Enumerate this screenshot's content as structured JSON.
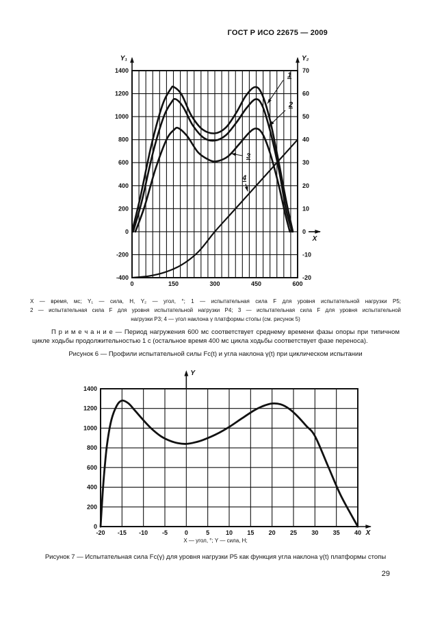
{
  "page": {
    "header": "ГОСТ Р ИСО 22675 — 2009",
    "page_number": "29"
  },
  "figure6": {
    "legend_line1": "X — время, мс; Y₁ — сила, Н, Y₂ — угол, °; 1 — испытательная сила F для уровня испытательной нагрузки Р5;",
    "legend_line2": "2 — испытательная сила F для уровня испытательной нагрузки Р4; 3 — испытательная сила F для уровня испытательной",
    "legend_line3": "нагрузки Р3; 4 — угол наклона γ платформы стопы (см. рисунок 5)",
    "note": "П р и м е ч а н и е — Период нагружения 600 мс соответствует среднему времени фазы опоры при типичном цикле ходьбы продолжительностью 1 с (остальное время 400 мс цикла ходьбы соответствует фазе переноса).",
    "caption": "Рисунок 6 — Профили испытательной силы Fc(t) и угла наклона γ(t) при циклическом испытании"
  },
  "figure7": {
    "axis_note": "X — угол, °; Y — сила, Н;",
    "caption": "Рисунок 7 — Испытательная сила Fc(γ) для уровня нагрузки Р5 как функция угла наклона γ(t) платформы стопы"
  },
  "chart_data": [
    {
      "type": "line",
      "title": "Профили испытательной силы Fc(t) и угла наклона γ(t) при циклическом испытании",
      "grid": true,
      "legend_position": "callout-numbers",
      "x_axis": {
        "label": "X",
        "unit": "время, мс",
        "min": 0,
        "max": 600,
        "grid_step": 25,
        "ticks": [
          0,
          150,
          300,
          450,
          600
        ]
      },
      "y_left": {
        "label": "Y₁",
        "unit": "сила, Н",
        "min": -400,
        "max": 1400,
        "grid_step": 200,
        "ticks": [
          1400,
          1200,
          1000,
          800,
          600,
          400,
          200,
          0,
          -200,
          -400
        ]
      },
      "y_right": {
        "label": "Y₂",
        "unit": "угол, °",
        "min": -20,
        "max": 70,
        "grid_step": 10,
        "ticks": [
          70,
          60,
          50,
          40,
          30,
          20,
          10,
          0,
          -10,
          -20
        ]
      },
      "series": [
        {
          "name": "1",
          "desc": "испытательная сила F для уровня испытательной нагрузки Р5",
          "axis": "left",
          "points": [
            [
              0,
              0
            ],
            [
              30,
              300
            ],
            [
              70,
              750
            ],
            [
              110,
              1100
            ],
            [
              140,
              1240
            ],
            [
              152,
              1257
            ],
            [
              180,
              1190
            ],
            [
              215,
              1010
            ],
            [
              255,
              890
            ],
            [
              300,
              855
            ],
            [
              340,
              905
            ],
            [
              378,
              1035
            ],
            [
              412,
              1180
            ],
            [
              445,
              1257
            ],
            [
              470,
              1200
            ],
            [
              500,
              970
            ],
            [
              532,
              600
            ],
            [
              560,
              250
            ],
            [
              583,
              0
            ]
          ]
        },
        {
          "name": "2",
          "desc": "испытательная сила F для уровня испытательной нагрузки Р4",
          "axis": "left",
          "points": [
            [
              4,
              0
            ],
            [
              35,
              260
            ],
            [
              75,
              680
            ],
            [
              115,
              1000
            ],
            [
              143,
              1125
            ],
            [
              158,
              1152
            ],
            [
              185,
              1085
            ],
            [
              220,
              925
            ],
            [
              260,
              815
            ],
            [
              300,
              792
            ],
            [
              340,
              838
            ],
            [
              380,
              955
            ],
            [
              415,
              1075
            ],
            [
              448,
              1152
            ],
            [
              472,
              1095
            ],
            [
              500,
              880
            ],
            [
              532,
              540
            ],
            [
              558,
              195
            ],
            [
              580,
              0
            ]
          ]
        },
        {
          "name": "3",
          "desc": "испытательная сила F для уровня испытательной нагрузки Р3",
          "axis": "left",
          "points": [
            [
              12,
              0
            ],
            [
              45,
              215
            ],
            [
              85,
              545
            ],
            [
              125,
              800
            ],
            [
              152,
              885
            ],
            [
              168,
              900
            ],
            [
              200,
              830
            ],
            [
              240,
              688
            ],
            [
              280,
              623
            ],
            [
              308,
              612
            ],
            [
              348,
              655
            ],
            [
              388,
              760
            ],
            [
              425,
              862
            ],
            [
              450,
              897
            ],
            [
              473,
              850
            ],
            [
              500,
              685
            ],
            [
              530,
              420
            ],
            [
              556,
              145
            ],
            [
              572,
              0
            ]
          ]
        },
        {
          "name": "4",
          "desc": "угол наклона γ платформы стопы",
          "axis": "right",
          "points": [
            [
              0,
              -20
            ],
            [
              60,
              -19.3
            ],
            [
              120,
              -17.6
            ],
            [
              180,
              -14.4
            ],
            [
              240,
              -8.8
            ],
            [
              300,
              0
            ],
            [
              360,
              8
            ],
            [
              420,
              16
            ],
            [
              480,
              24
            ],
            [
              540,
              32
            ],
            [
              600,
              40
            ]
          ]
        }
      ]
    },
    {
      "type": "line",
      "title": "Испытательная сила Fc(γ) для уровня нагрузки Р5 как функция угла наклона γ(t) платформы стопы",
      "grid": true,
      "legend_position": "none",
      "x_axis": {
        "label": "X",
        "unit": "угол, °",
        "min": -20,
        "max": 40,
        "grid_step": 5,
        "ticks": [
          -20,
          -15,
          -10,
          -5,
          0,
          5,
          10,
          15,
          20,
          25,
          30,
          35,
          40
        ]
      },
      "y_left": {
        "label": "Y",
        "unit": "сила, Н",
        "min": 0,
        "max": 1400,
        "grid_step": 200,
        "ticks": [
          1400,
          1200,
          1000,
          800,
          600,
          400,
          200,
          0
        ]
      },
      "series": [
        {
          "name": "Fc(γ), уровень нагрузки Р5",
          "axis": "left",
          "points": [
            [
              -20,
              0
            ],
            [
              -19.6,
              280
            ],
            [
              -19.2,
              520
            ],
            [
              -18.5,
              830
            ],
            [
              -17.5,
              1080
            ],
            [
              -16.2,
              1230
            ],
            [
              -15,
              1280
            ],
            [
              -13.5,
              1252
            ],
            [
              -12,
              1180
            ],
            [
              -10,
              1080
            ],
            [
              -8,
              990
            ],
            [
              -6,
              920
            ],
            [
              -4,
              875
            ],
            [
              -2,
              848
            ],
            [
              0,
              840
            ],
            [
              2,
              855
            ],
            [
              4,
              882
            ],
            [
              7,
              938
            ],
            [
              10,
              1012
            ],
            [
              13,
              1100
            ],
            [
              16,
              1185
            ],
            [
              18,
              1226
            ],
            [
              20,
              1250
            ],
            [
              22,
              1242
            ],
            [
              24,
              1196
            ],
            [
              26,
              1118
            ],
            [
              28,
              1022
            ],
            [
              30,
              920
            ],
            [
              33,
              620
            ],
            [
              36,
              320
            ],
            [
              40,
              0
            ]
          ]
        }
      ]
    }
  ]
}
